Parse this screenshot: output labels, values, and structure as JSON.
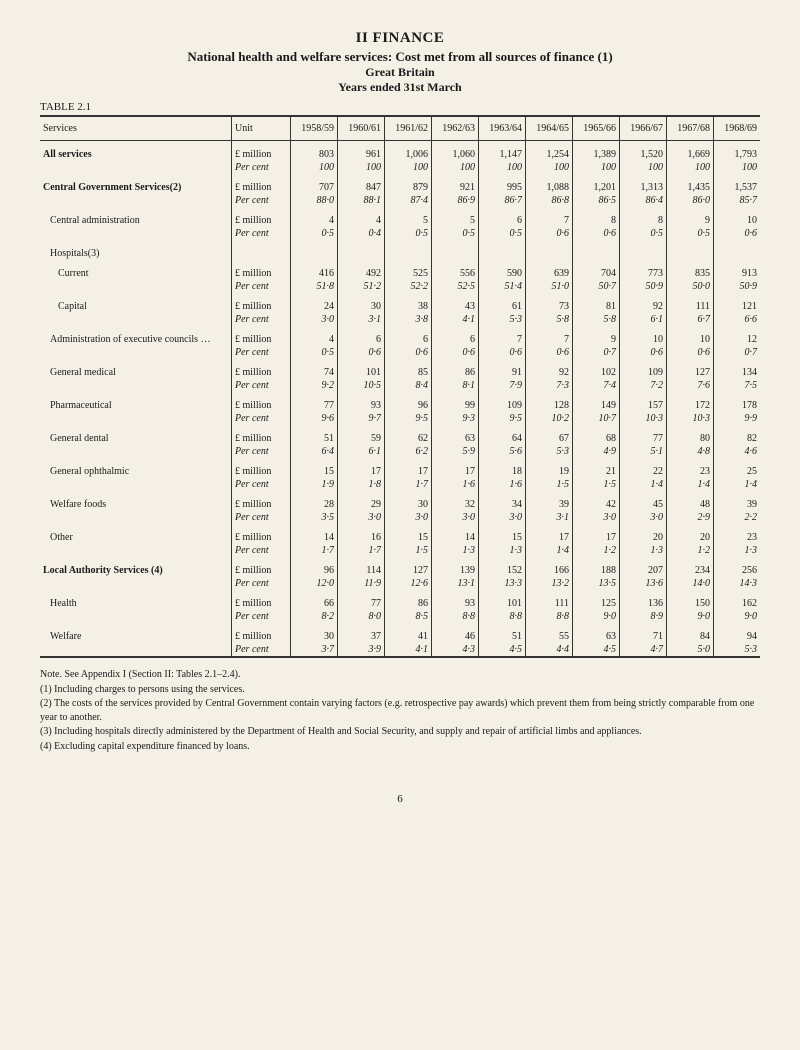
{
  "heading": {
    "section": "II FINANCE",
    "title": "National health and welfare services: Cost met from all sources of finance (1)",
    "sub1": "Great Britain",
    "sub2": "Years ended 31st March"
  },
  "table_label": "TABLE 2.1",
  "columns": {
    "services": "Services",
    "unit": "Unit",
    "years": [
      "1958/59",
      "1960/61",
      "1961/62",
      "1962/63",
      "1963/64",
      "1964/65",
      "1965/66",
      "1966/67",
      "1967/68",
      "1968/69"
    ]
  },
  "unit_labels": {
    "million": "£ million",
    "percent": "Per cent"
  },
  "rows": [
    {
      "label": "All services",
      "bold": true,
      "indent": 0,
      "m": [
        "803",
        "961",
        "1,006",
        "1,060",
        "1,147",
        "1,254",
        "1,389",
        "1,520",
        "1,669",
        "1,793"
      ],
      "p": [
        "100",
        "100",
        "100",
        "100",
        "100",
        "100",
        "100",
        "100",
        "100",
        "100"
      ]
    },
    {
      "label": "Central Government Services(2)",
      "bold": true,
      "indent": 0,
      "m": [
        "707",
        "847",
        "879",
        "921",
        "995",
        "1,088",
        "1,201",
        "1,313",
        "1,435",
        "1,537"
      ],
      "p": [
        "88·0",
        "88·1",
        "87·4",
        "86·9",
        "86·7",
        "86·8",
        "86·5",
        "86·4",
        "86·0",
        "85·7"
      ]
    },
    {
      "label": "Central administration",
      "bold": false,
      "indent": 1,
      "m": [
        "4",
        "4",
        "5",
        "5",
        "6",
        "7",
        "8",
        "8",
        "9",
        "10"
      ],
      "p": [
        "0·5",
        "0·4",
        "0·5",
        "0·5",
        "0·5",
        "0·6",
        "0·6",
        "0·5",
        "0·5",
        "0·6"
      ]
    },
    {
      "label": "Hospitals(3)",
      "bold": false,
      "indent": 1,
      "header_only": true
    },
    {
      "label": "Current",
      "bold": false,
      "indent": 2,
      "m": [
        "416",
        "492",
        "525",
        "556",
        "590",
        "639",
        "704",
        "773",
        "835",
        "913"
      ],
      "p": [
        "51·8",
        "51·2",
        "52·2",
        "52·5",
        "51·4",
        "51·0",
        "50·7",
        "50·9",
        "50·0",
        "50·9"
      ]
    },
    {
      "label": "Capital",
      "bold": false,
      "indent": 2,
      "m": [
        "24",
        "30",
        "38",
        "43",
        "61",
        "73",
        "81",
        "92",
        "111",
        "121"
      ],
      "p": [
        "3·0",
        "3·1",
        "3·8",
        "4·1",
        "5·3",
        "5·8",
        "5·8",
        "6·1",
        "6·7",
        "6·6"
      ]
    },
    {
      "label": "Administration of executive councils …",
      "bold": false,
      "indent": 1,
      "m": [
        "4",
        "6",
        "6",
        "6",
        "7",
        "7",
        "9",
        "10",
        "10",
        "12"
      ],
      "p": [
        "0·5",
        "0·6",
        "0·6",
        "0·6",
        "0·6",
        "0·6",
        "0·7",
        "0·6",
        "0·6",
        "0·7"
      ]
    },
    {
      "label": "General medical",
      "bold": false,
      "indent": 1,
      "m": [
        "74",
        "101",
        "85",
        "86",
        "91",
        "92",
        "102",
        "109",
        "127",
        "134"
      ],
      "p": [
        "9·2",
        "10·5",
        "8·4",
        "8·1",
        "7·9",
        "7·3",
        "7·4",
        "7·2",
        "7·6",
        "7·5"
      ]
    },
    {
      "label": "Pharmaceutical",
      "bold": false,
      "indent": 1,
      "m": [
        "77",
        "93",
        "96",
        "99",
        "109",
        "128",
        "149",
        "157",
        "172",
        "178"
      ],
      "p": [
        "9·6",
        "9·7",
        "9·5",
        "9·3",
        "9·5",
        "10·2",
        "10·7",
        "10·3",
        "10·3",
        "9·9"
      ]
    },
    {
      "label": "General dental",
      "bold": false,
      "indent": 1,
      "m": [
        "51",
        "59",
        "62",
        "63",
        "64",
        "67",
        "68",
        "77",
        "80",
        "82"
      ],
      "p": [
        "6·4",
        "6·1",
        "6·2",
        "5·9",
        "5·6",
        "5·3",
        "4·9",
        "5·1",
        "4·8",
        "4·6"
      ]
    },
    {
      "label": "General ophthalmic",
      "bold": false,
      "indent": 1,
      "m": [
        "15",
        "17",
        "17",
        "17",
        "18",
        "19",
        "21",
        "22",
        "23",
        "25"
      ],
      "p": [
        "1·9",
        "1·8",
        "1·7",
        "1·6",
        "1·6",
        "1·5",
        "1·5",
        "1·4",
        "1·4",
        "1·4"
      ]
    },
    {
      "label": "Welfare foods",
      "bold": false,
      "indent": 1,
      "m": [
        "28",
        "29",
        "30",
        "32",
        "34",
        "39",
        "42",
        "45",
        "48",
        "39"
      ],
      "p": [
        "3·5",
        "3·0",
        "3·0",
        "3·0",
        "3·0",
        "3·1",
        "3·0",
        "3·0",
        "2·9",
        "2·2"
      ]
    },
    {
      "label": "Other",
      "bold": false,
      "indent": 1,
      "m": [
        "14",
        "16",
        "15",
        "14",
        "15",
        "17",
        "17",
        "20",
        "20",
        "23"
      ],
      "p": [
        "1·7",
        "1·7",
        "1·5",
        "1·3",
        "1·3",
        "1·4",
        "1·2",
        "1·3",
        "1·2",
        "1·3"
      ]
    },
    {
      "label": "Local Authority Services (4)",
      "bold": true,
      "indent": 0,
      "m": [
        "96",
        "114",
        "127",
        "139",
        "152",
        "166",
        "188",
        "207",
        "234",
        "256"
      ],
      "p": [
        "12·0",
        "11·9",
        "12·6",
        "13·1",
        "13·3",
        "13·2",
        "13·5",
        "13·6",
        "14·0",
        "14·3"
      ]
    },
    {
      "label": "Health",
      "bold": false,
      "indent": 1,
      "m": [
        "66",
        "77",
        "86",
        "93",
        "101",
        "111",
        "125",
        "136",
        "150",
        "162"
      ],
      "p": [
        "8·2",
        "8·0",
        "8·5",
        "8·8",
        "8·8",
        "8·8",
        "9·0",
        "8·9",
        "9·0",
        "9·0"
      ]
    },
    {
      "label": "Welfare",
      "bold": false,
      "indent": 1,
      "m": [
        "30",
        "37",
        "41",
        "46",
        "51",
        "55",
        "63",
        "71",
        "84",
        "94"
      ],
      "p": [
        "3·7",
        "3·9",
        "4·1",
        "4·3",
        "4·5",
        "4·4",
        "4·5",
        "4·7",
        "5·0",
        "5·3"
      ]
    }
  ],
  "notes": [
    "Note. See Appendix I (Section II: Tables 2.1–2.4).",
    "(1) Including charges to persons using the services.",
    "(2) The costs of the services provided by Central Government contain varying factors (e.g. retrospective pay awards) which prevent them from being strictly comparable from one year to another.",
    "(3) Including hospitals directly administered by the Department of Health and Social Security, and supply and repair of artificial limbs and appliances.",
    "(4) Excluding capital expenditure financed by loans."
  ],
  "page_number": "6",
  "style": {
    "background_color": "#f4f0e6",
    "text_color": "#1a1a1a",
    "rule_color": "#333333",
    "font_family": "Times New Roman",
    "base_fontsize_pt": 10
  }
}
